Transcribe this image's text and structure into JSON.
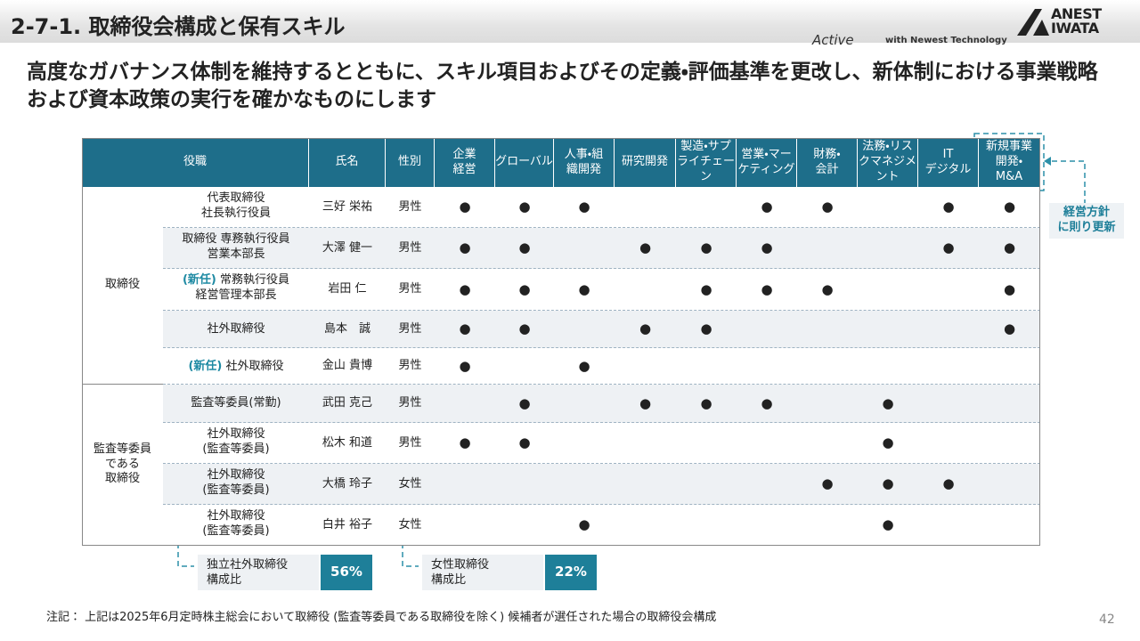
{
  "header": {
    "title": "2-7-1. 取締役会構成と保有スキル",
    "brand": "ANEST\nIWATA",
    "tagline_mark": "Active",
    "tagline": "with Newest Technology"
  },
  "headline": "高度なガバナンス体制を維持するとともに、スキル項目およびその定義・評価基準を更改し、新体制における事業戦略および資本政策の実行を確かなものにします",
  "table": {
    "columns": [
      "役職",
      "氏名",
      "性別",
      "企業\n経営",
      "グローバル",
      "人事・組\n織開発",
      "研究開発",
      "製造・サプ\nライチェー\nン",
      "営業・マー\nケティング",
      "財務・\n会計",
      "法務・リス\nクマネジメ\nント",
      "IT\nデジタル",
      "新規事業\n開発・\nM&A"
    ],
    "groups": [
      {
        "label": "取締役",
        "rows": [
          {
            "position": "代表取締役\n社長執行役員",
            "name": "三好 栄祐",
            "gender": "男性",
            "skills": [
              "●",
              "●",
              "●",
              null,
              null,
              "●",
              "●",
              null,
              "●",
              "●"
            ]
          },
          {
            "position": "取締役 専務執行役員\n営業本部長",
            "name": "大澤 健一",
            "gender": "男性",
            "skills": [
              "●",
              "●",
              null,
              "●",
              "●",
              "●",
              null,
              null,
              "●",
              "●"
            ]
          },
          {
            "new": "(新任)",
            "position": "常務執行役員\n経営管理本部長",
            "name": "岩田 仁",
            "gender": "男性",
            "skills": [
              "●",
              "●",
              "●",
              null,
              "●",
              "●",
              "●",
              null,
              null,
              "●"
            ]
          },
          {
            "position": "社外取締役",
            "name": "島本　誠",
            "gender": "男性",
            "skills": [
              "●",
              "●",
              null,
              "●",
              "●",
              null,
              null,
              null,
              null,
              "●"
            ]
          },
          {
            "new": "(新任)",
            "position": "社外取締役",
            "name": "金山 貴博",
            "gender": "男性",
            "skills": [
              "●",
              null,
              "●",
              null,
              null,
              null,
              null,
              null,
              null,
              null
            ]
          }
        ]
      },
      {
        "label": "監査等委員\nである\n取締役",
        "rows": [
          {
            "position": "監査等委員(常勤)",
            "name": "武田 克己",
            "gender": "男性",
            "skills": [
              null,
              "●",
              null,
              "●",
              "●",
              "●",
              null,
              "●",
              null,
              null
            ]
          },
          {
            "position": "社外取締役\n(監査等委員)",
            "name": "松木 和道",
            "gender": "男性",
            "skills": [
              "●",
              "●",
              null,
              null,
              null,
              null,
              null,
              "●",
              null,
              null
            ]
          },
          {
            "position": "社外取締役\n(監査等委員)",
            "name": "大橋 玲子",
            "gender": "女性",
            "skills": [
              null,
              null,
              null,
              null,
              null,
              null,
              "●",
              "●",
              "●",
              null
            ]
          },
          {
            "position": "社外取締役\n(監査等委員)",
            "name": "白井 裕子",
            "gender": "女性",
            "skills": [
              null,
              null,
              "●",
              null,
              null,
              null,
              null,
              "●",
              null,
              null
            ]
          }
        ]
      }
    ]
  },
  "side_note": "経営方針\nに則り更新",
  "ratios": [
    {
      "label": "独立社外取締役\n構成比",
      "value": "56%"
    },
    {
      "label": "女性取締役\n構成比",
      "value": "22%"
    }
  ],
  "footnote": "注記： 上記は2025年6月定時株主総会において取締役 (監査等委員である取締役を除く) 候補者が選任された場合の取締役会構成",
  "page_number": "42"
}
